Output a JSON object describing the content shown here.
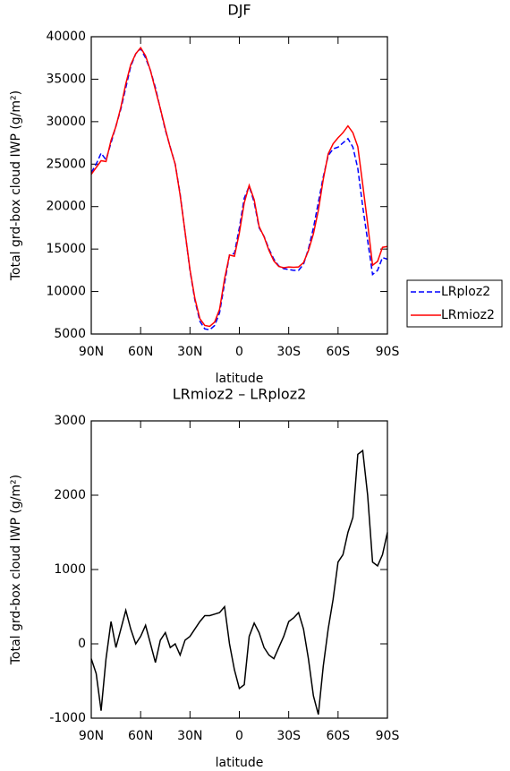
{
  "chart_data": [
    {
      "type": "line",
      "title": "DJF",
      "x_label": "latitude",
      "y_label": "Total grd-box cloud IWP (g/m²)",
      "x": [
        90,
        87,
        84,
        81,
        78,
        75,
        72,
        69,
        66,
        63,
        60,
        57,
        54,
        51,
        48,
        45,
        42,
        39,
        36,
        33,
        30,
        27,
        24,
        21,
        18,
        15,
        12,
        9,
        6,
        3,
        0,
        -3,
        -6,
        -9,
        -12,
        -15,
        -18,
        -21,
        -24,
        -27,
        -30,
        -33,
        -36,
        -39,
        -42,
        -45,
        -48,
        -51,
        -54,
        -57,
        -60,
        -63,
        -66,
        -69,
        -72,
        -75,
        -78,
        -81,
        -84,
        -87,
        -90
      ],
      "series": [
        {
          "name": "LRploz2",
          "color": "#0000ff",
          "style": "dashed",
          "values": [
            24000,
            25000,
            26300,
            25500,
            27500,
            29500,
            31500,
            34000,
            36500,
            38000,
            38600,
            37500,
            36000,
            34000,
            31500,
            29000,
            27000,
            25000,
            21500,
            17000,
            12500,
            9000,
            6500,
            5600,
            5500,
            6000,
            7500,
            11000,
            14300,
            14500,
            17500,
            21000,
            22400,
            20500,
            17500,
            16500,
            15000,
            13800,
            13000,
            12700,
            12600,
            12500,
            12500,
            13200,
            15000,
            17500,
            20500,
            23500,
            26000,
            26800,
            27000,
            27500,
            28000,
            27000,
            24500,
            20000,
            16000,
            12000,
            12500,
            14000,
            13800
          ]
        },
        {
          "name": "LRmioz2",
          "color": "#ff0000",
          "style": "solid",
          "values": [
            23800,
            24600,
            25400,
            25300,
            27800,
            29450,
            31700,
            34450,
            36700,
            38000,
            38700,
            37750,
            36000,
            33750,
            31550,
            29150,
            26950,
            25000,
            21350,
            17050,
            12600,
            9200,
            6800,
            6000,
            5900,
            6400,
            7900,
            11500,
            14300,
            14150,
            16900,
            20450,
            22500,
            20800,
            17650,
            16450,
            14850,
            13600,
            12950,
            12800,
            12900,
            12850,
            12900,
            13400,
            14800,
            16800,
            19550,
            23200,
            26200,
            27400,
            28100,
            28700,
            29500,
            28700,
            27050,
            22600,
            18000,
            13100,
            13550,
            15200,
            15300
          ]
        }
      ],
      "xlim": [
        90,
        -90
      ],
      "xticks": [
        {
          "value": 90,
          "label": "90N"
        },
        {
          "value": 60,
          "label": "60N"
        },
        {
          "value": 30,
          "label": "30N"
        },
        0,
        {
          "value": -30,
          "label": "30S"
        },
        {
          "value": -60,
          "label": "60S"
        },
        {
          "value": -90,
          "label": "90S"
        }
      ],
      "ylim": [
        5000,
        40000
      ],
      "yticks": [
        5000,
        10000,
        15000,
        20000,
        25000,
        30000,
        35000,
        40000
      ],
      "legend": "outside right"
    },
    {
      "type": "line",
      "title": "LRmioz2 – LRploz2",
      "x_label": "latitude",
      "y_label": "Total grd-box cloud IWP (g/m²)",
      "x": [
        90,
        87,
        84,
        81,
        78,
        75,
        72,
        69,
        66,
        63,
        60,
        57,
        54,
        51,
        48,
        45,
        42,
        39,
        36,
        33,
        30,
        27,
        24,
        21,
        18,
        15,
        12,
        9,
        6,
        3,
        0,
        -3,
        -6,
        -9,
        -12,
        -15,
        -18,
        -21,
        -24,
        -27,
        -30,
        -33,
        -36,
        -39,
        -42,
        -45,
        -48,
        -51,
        -54,
        -57,
        -60,
        -63,
        -66,
        -69,
        -72,
        -75,
        -78,
        -81,
        -84,
        -87,
        -90
      ],
      "series": [
        {
          "color": "#000000",
          "style": "solid",
          "values": [
            -200,
            -400,
            -900,
            -200,
            300,
            -50,
            200,
            450,
            200,
            0,
            100,
            250,
            0,
            -250,
            50,
            150,
            -50,
            0,
            -150,
            50,
            100,
            200,
            300,
            380,
            380,
            400,
            420,
            500,
            0,
            -350,
            -600,
            -550,
            100,
            280,
            150,
            -50,
            -150,
            -200,
            -50,
            100,
            300,
            350,
            420,
            200,
            -200,
            -700,
            -950,
            -300,
            200,
            600,
            1100,
            1200,
            1500,
            1700,
            2550,
            2600,
            2000,
            1100,
            1050,
            1200,
            1500
          ]
        }
      ],
      "xlim": [
        90,
        -90
      ],
      "xticks": [
        {
          "value": 90,
          "label": "90N"
        },
        {
          "value": 60,
          "label": "60N"
        },
        {
          "value": 30,
          "label": "30N"
        },
        0,
        {
          "value": -30,
          "label": "30S"
        },
        {
          "value": -60,
          "label": "60S"
        },
        {
          "value": -90,
          "label": "90S"
        }
      ],
      "ylim": [
        -1000,
        3000
      ],
      "yticks": [
        -1000,
        0,
        1000,
        2000,
        3000
      ]
    }
  ]
}
